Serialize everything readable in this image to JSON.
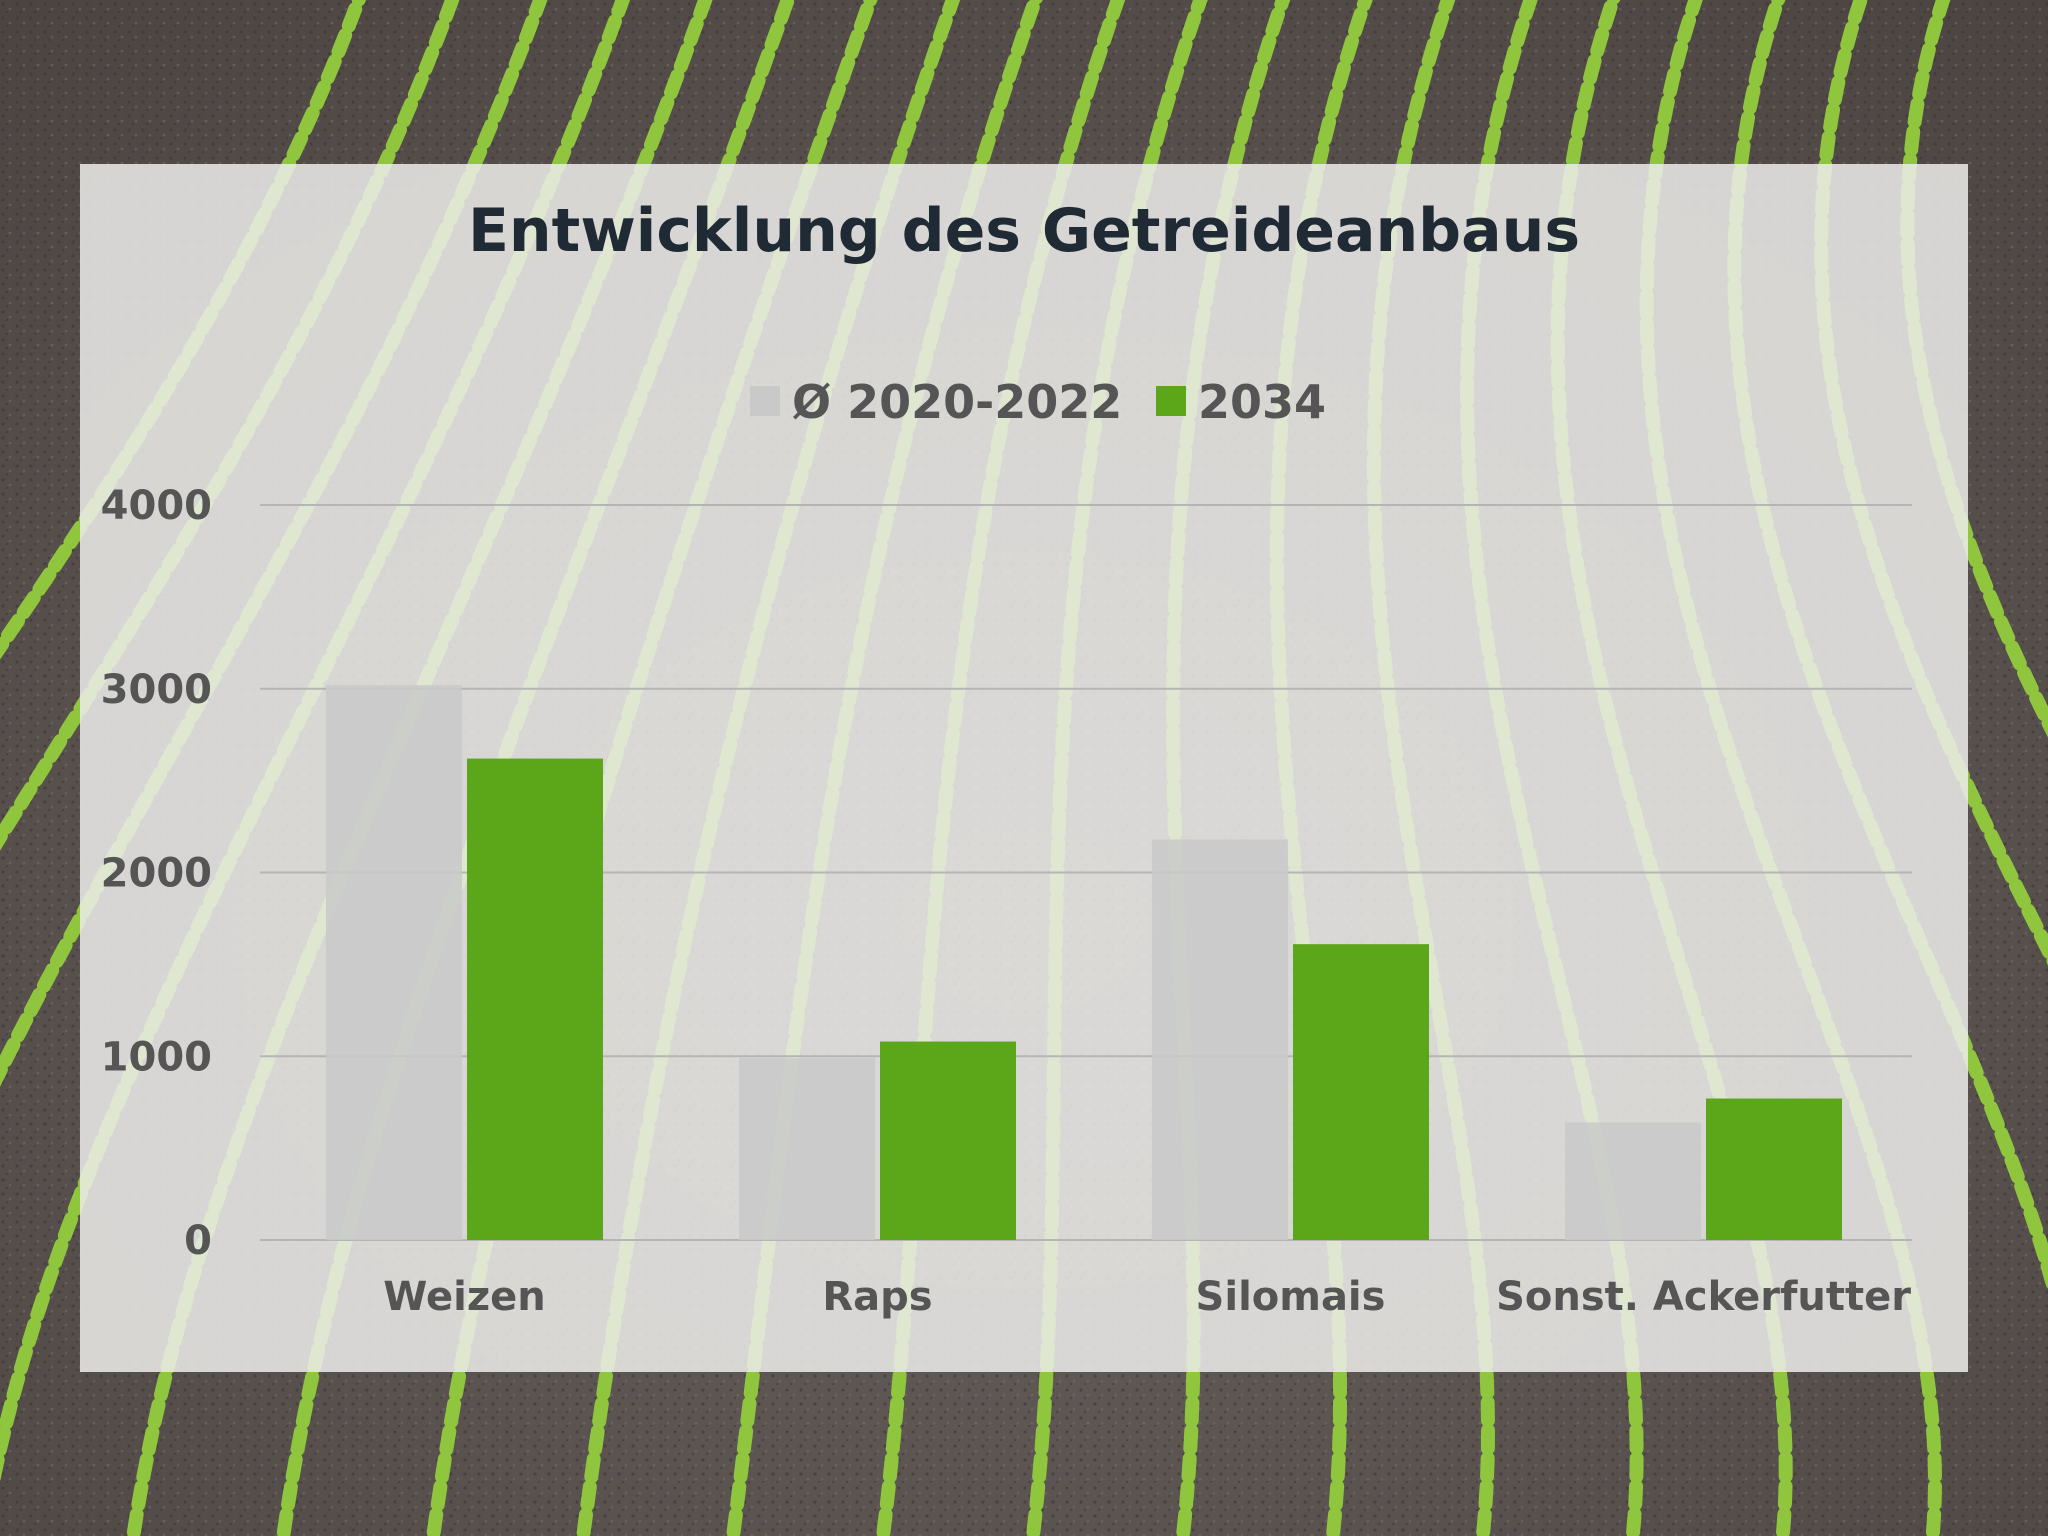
{
  "colors": {
    "series_avg": "#c9c9c9",
    "series_2034": "#5ca619",
    "panel_bg": "#ececea",
    "gridline": "#b5b5b5",
    "text": "#555555",
    "title": "#1f2a35",
    "soil": "#5a5350",
    "seedling": "#8fc63d"
  },
  "chart_data": {
    "type": "bar",
    "title": "Entwicklung des Getreideanbaus",
    "xlabel": "",
    "ylabel": "",
    "categories": [
      "Weizen",
      "Raps",
      "Silomais",
      "Sonst. Ackerfutter"
    ],
    "series": [
      {
        "name": "Ø 2020-2022",
        "values": [
          3020,
          990,
          2180,
          640
        ]
      },
      {
        "name": "2034",
        "values": [
          2620,
          1080,
          1610,
          770
        ]
      }
    ],
    "ylim": [
      0,
      4000
    ],
    "yticks": [
      "0",
      "1000",
      "2000",
      "3000",
      "4000"
    ],
    "grid": true,
    "legend_position": "top-center"
  }
}
